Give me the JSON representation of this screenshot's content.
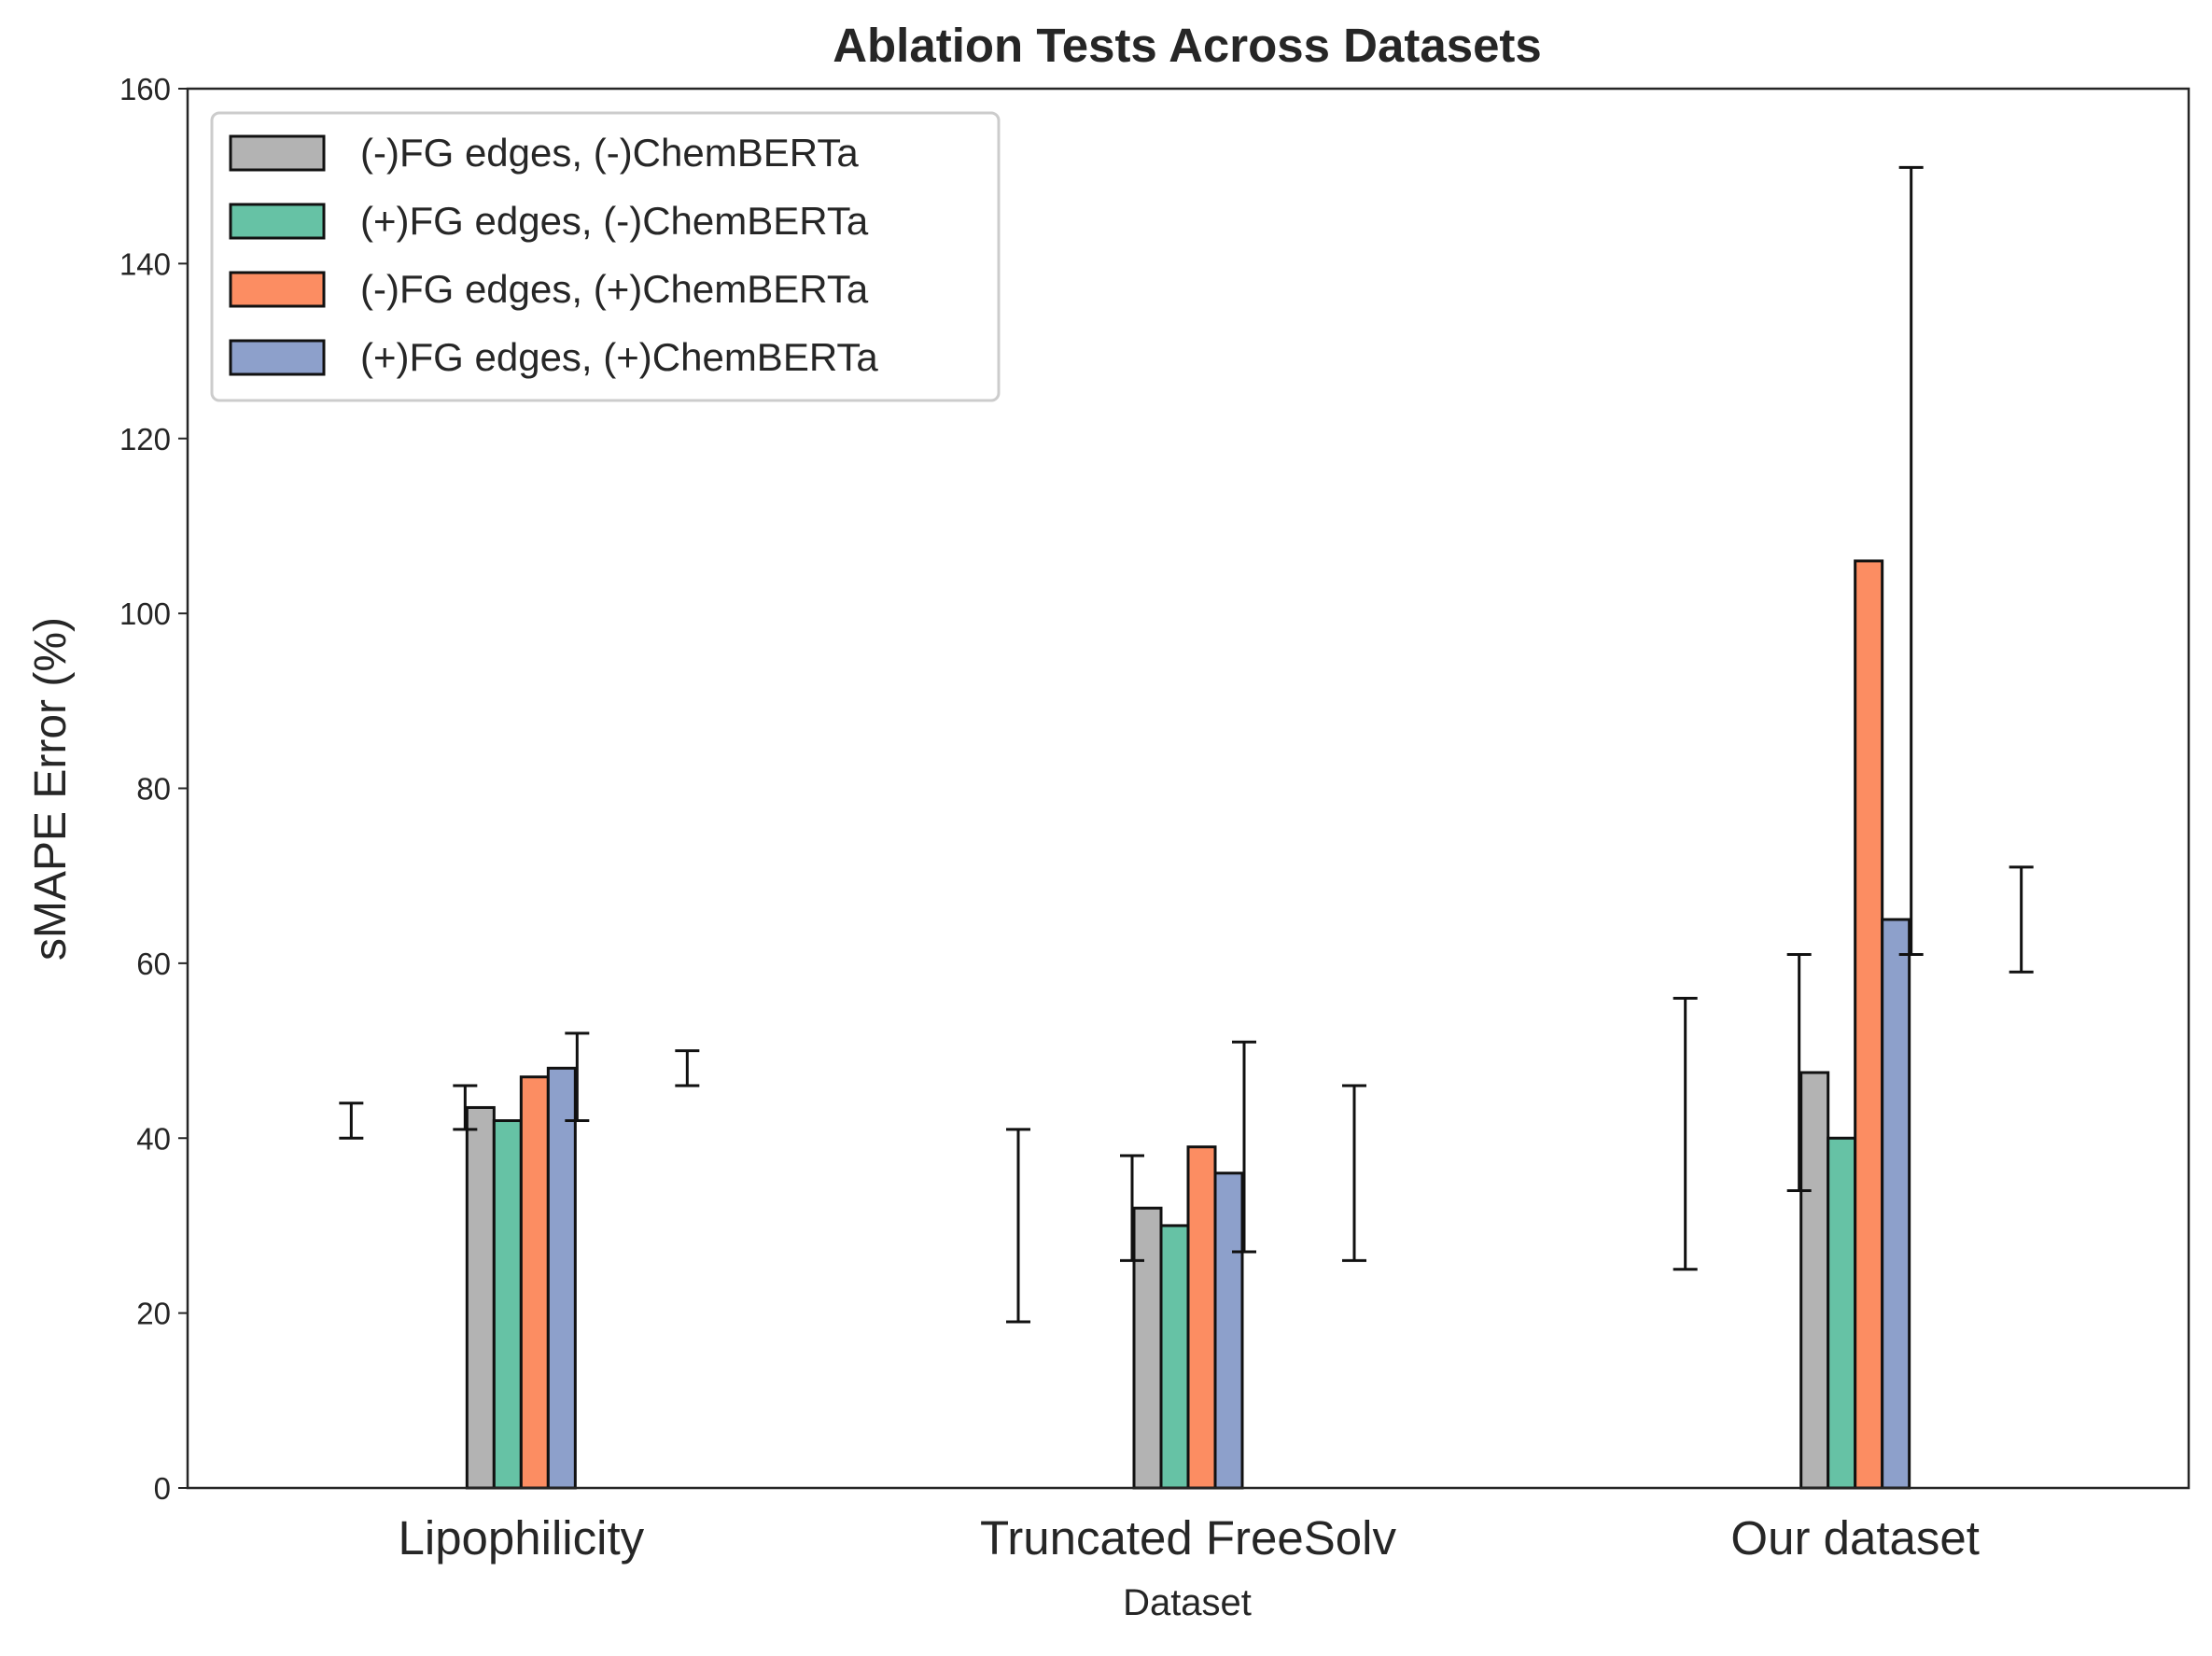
{
  "chart_data": {
    "type": "bar",
    "title": "Ablation Tests Across Datasets",
    "xlabel": "Dataset",
    "ylabel": "sMAPE Error (%)",
    "ylim": [
      0,
      160
    ],
    "yticks": [
      "0",
      "20",
      "40",
      "60",
      "80",
      "100",
      "120",
      "140",
      "160"
    ],
    "categories": [
      "Lipophilicity",
      "Truncated FreeSolv",
      "Our dataset"
    ],
    "grid": false,
    "legend_position": "top-left",
    "series": [
      {
        "name": "(-)FG edges, (-)ChemBERTa",
        "color": "#b3b3b3",
        "values": [
          43.5,
          32,
          47.5
        ],
        "errorbars": [
          [
            40,
            44
          ],
          [
            19,
            41
          ],
          [
            25,
            56
          ]
        ]
      },
      {
        "name": "(+)FG edges, (-)ChemBERTa",
        "color": "#66c2a5",
        "values": [
          42,
          30,
          40
        ],
        "errorbars": [
          [
            41,
            46
          ],
          [
            26,
            38
          ],
          [
            34,
            61
          ]
        ]
      },
      {
        "name": "(-)FG edges, (+)ChemBERTa",
        "color": "#fc8d62",
        "values": [
          47,
          39,
          106
        ],
        "errorbars": [
          [
            42,
            52
          ],
          [
            27,
            51
          ],
          [
            61,
            151
          ]
        ]
      },
      {
        "name": "(+)FG edges, (+)ChemBERTa",
        "color": "#8da0cb",
        "values": [
          48,
          36,
          65
        ],
        "errorbars": [
          [
            46,
            50
          ],
          [
            26,
            46
          ],
          [
            59,
            71
          ]
        ]
      }
    ]
  }
}
